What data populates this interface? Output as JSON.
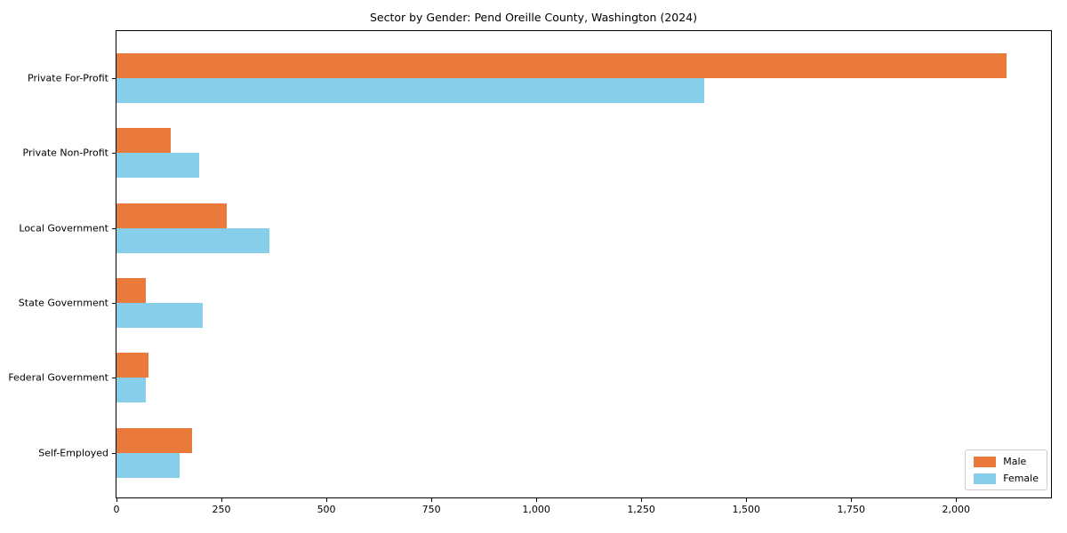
{
  "chart_data": {
    "type": "bar",
    "orientation": "horizontal",
    "title": "Sector by Gender: Pend Oreille County, Washington (2024)",
    "categories": [
      "Private For-Profit",
      "Private Non-Profit",
      "Local Government",
      "State Government",
      "Federal Government",
      "Self-Employed"
    ],
    "series": [
      {
        "name": "Male",
        "color": "#EA7A3B",
        "values": [
          2120,
          130,
          263,
          69,
          77,
          181
        ]
      },
      {
        "name": "Female",
        "color": "#87CEEB",
        "values": [
          1400,
          196,
          364,
          206,
          70,
          151
        ]
      }
    ],
    "xlabel": "",
    "ylabel": "",
    "xlim": [
      0,
      2226
    ],
    "x_ticks": [
      0,
      250,
      500,
      750,
      1000,
      1250,
      1500,
      1750,
      2000
    ],
    "x_tick_labels": [
      "0",
      "250",
      "500",
      "750",
      "1,000",
      "1,250",
      "1,500",
      "1,750",
      "2,000"
    ],
    "grid": false,
    "legend": {
      "position": "lower right"
    },
    "colors": {
      "male": "#EA7A3B",
      "female": "#87CEEB",
      "spine": "#000000",
      "legend_border": "#cccccc"
    }
  }
}
